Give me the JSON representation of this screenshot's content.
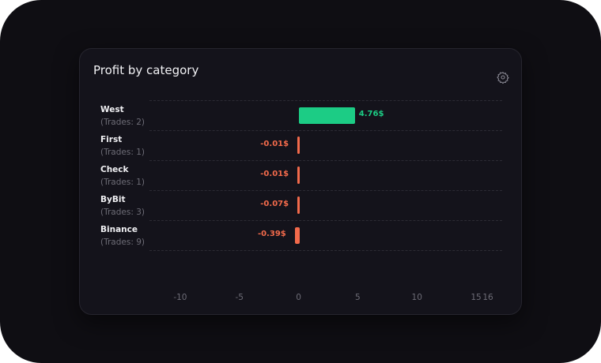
{
  "card": {
    "title": "Profit by category",
    "settings_icon": "gear-icon"
  },
  "colors": {
    "positive": "#1ccc85",
    "negative": "#f26a4b"
  },
  "chart_data": {
    "type": "bar",
    "orientation": "horizontal",
    "title": "Profit by category",
    "categories": [
      "West",
      "First",
      "Check",
      "ByBit",
      "Binance"
    ],
    "subtitles": [
      "(Trades: 2)",
      "(Trades: 1)",
      "(Trades: 1)",
      "(Trades: 3)",
      "(Trades: 9)"
    ],
    "values": [
      4.76,
      -0.01,
      -0.01,
      -0.07,
      -0.39
    ],
    "value_labels": [
      "4.76$",
      "-0.01$",
      "-0.01$",
      "-0.07$",
      "-0.39$"
    ],
    "xlim": [
      -12.6,
      16
    ],
    "xticks": [
      "-10",
      "-5",
      "0",
      "5",
      "10",
      "15",
      "16"
    ],
    "xtick_values": [
      -10,
      -5,
      0,
      5,
      10,
      15,
      16
    ],
    "grid": true
  }
}
